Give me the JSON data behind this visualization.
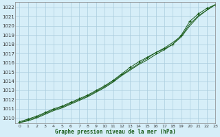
{
  "title": "Graphe pression niveau de la mer (hPa)",
  "bg_color": "#d6eef8",
  "grid_color": "#aaccdd",
  "line_color": "#1a5c1a",
  "marker_color": "#1a5c1a",
  "xlim": [
    -0.5,
    23
  ],
  "ylim": [
    1009.4,
    1022.6
  ],
  "yticks": [
    1010,
    1011,
    1012,
    1013,
    1014,
    1015,
    1016,
    1017,
    1018,
    1019,
    1020,
    1021,
    1022
  ],
  "xticks": [
    0,
    1,
    2,
    3,
    4,
    5,
    6,
    7,
    8,
    9,
    10,
    11,
    12,
    13,
    14,
    15,
    16,
    17,
    18,
    19,
    20,
    21,
    22,
    23
  ],
  "series1_x": [
    0,
    1,
    2,
    3,
    4,
    5,
    6,
    7,
    8,
    9,
    10,
    11,
    12,
    13,
    14,
    15,
    16,
    17,
    18,
    19,
    20,
    21,
    22,
    23
  ],
  "series1_y": [
    1009.6,
    1009.9,
    1010.2,
    1010.6,
    1011.0,
    1011.3,
    1011.7,
    1012.1,
    1012.5,
    1013.0,
    1013.5,
    1014.1,
    1014.8,
    1015.5,
    1016.1,
    1016.6,
    1017.1,
    1017.5,
    1018.0,
    1019.0,
    1020.5,
    1021.3,
    1021.9,
    1022.3
  ],
  "series2_x": [
    0,
    1,
    2,
    3,
    4,
    5,
    6,
    7,
    8,
    9,
    10,
    11,
    12,
    13,
    14,
    15,
    16,
    17,
    18,
    19,
    20,
    21,
    22,
    23
  ],
  "series2_y": [
    1009.5,
    1009.8,
    1010.1,
    1010.5,
    1010.9,
    1011.2,
    1011.6,
    1012.0,
    1012.4,
    1012.9,
    1013.4,
    1014.0,
    1014.7,
    1015.3,
    1015.9,
    1016.5,
    1017.1,
    1017.6,
    1018.2,
    1018.9,
    1020.2,
    1021.1,
    1021.7,
    1022.3
  ],
  "series3_x": [
    0,
    1,
    2,
    3,
    4,
    5,
    6,
    7,
    8,
    9,
    10,
    11,
    12,
    13,
    14,
    15,
    16,
    17,
    18,
    19,
    20,
    21,
    22,
    23
  ],
  "series3_y": [
    1009.5,
    1009.7,
    1010.0,
    1010.4,
    1010.8,
    1011.1,
    1011.5,
    1011.9,
    1012.3,
    1012.8,
    1013.3,
    1013.9,
    1014.6,
    1015.2,
    1015.8,
    1016.3,
    1016.9,
    1017.4,
    1018.0,
    1018.8,
    1020.0,
    1021.0,
    1021.7,
    1022.3
  ]
}
